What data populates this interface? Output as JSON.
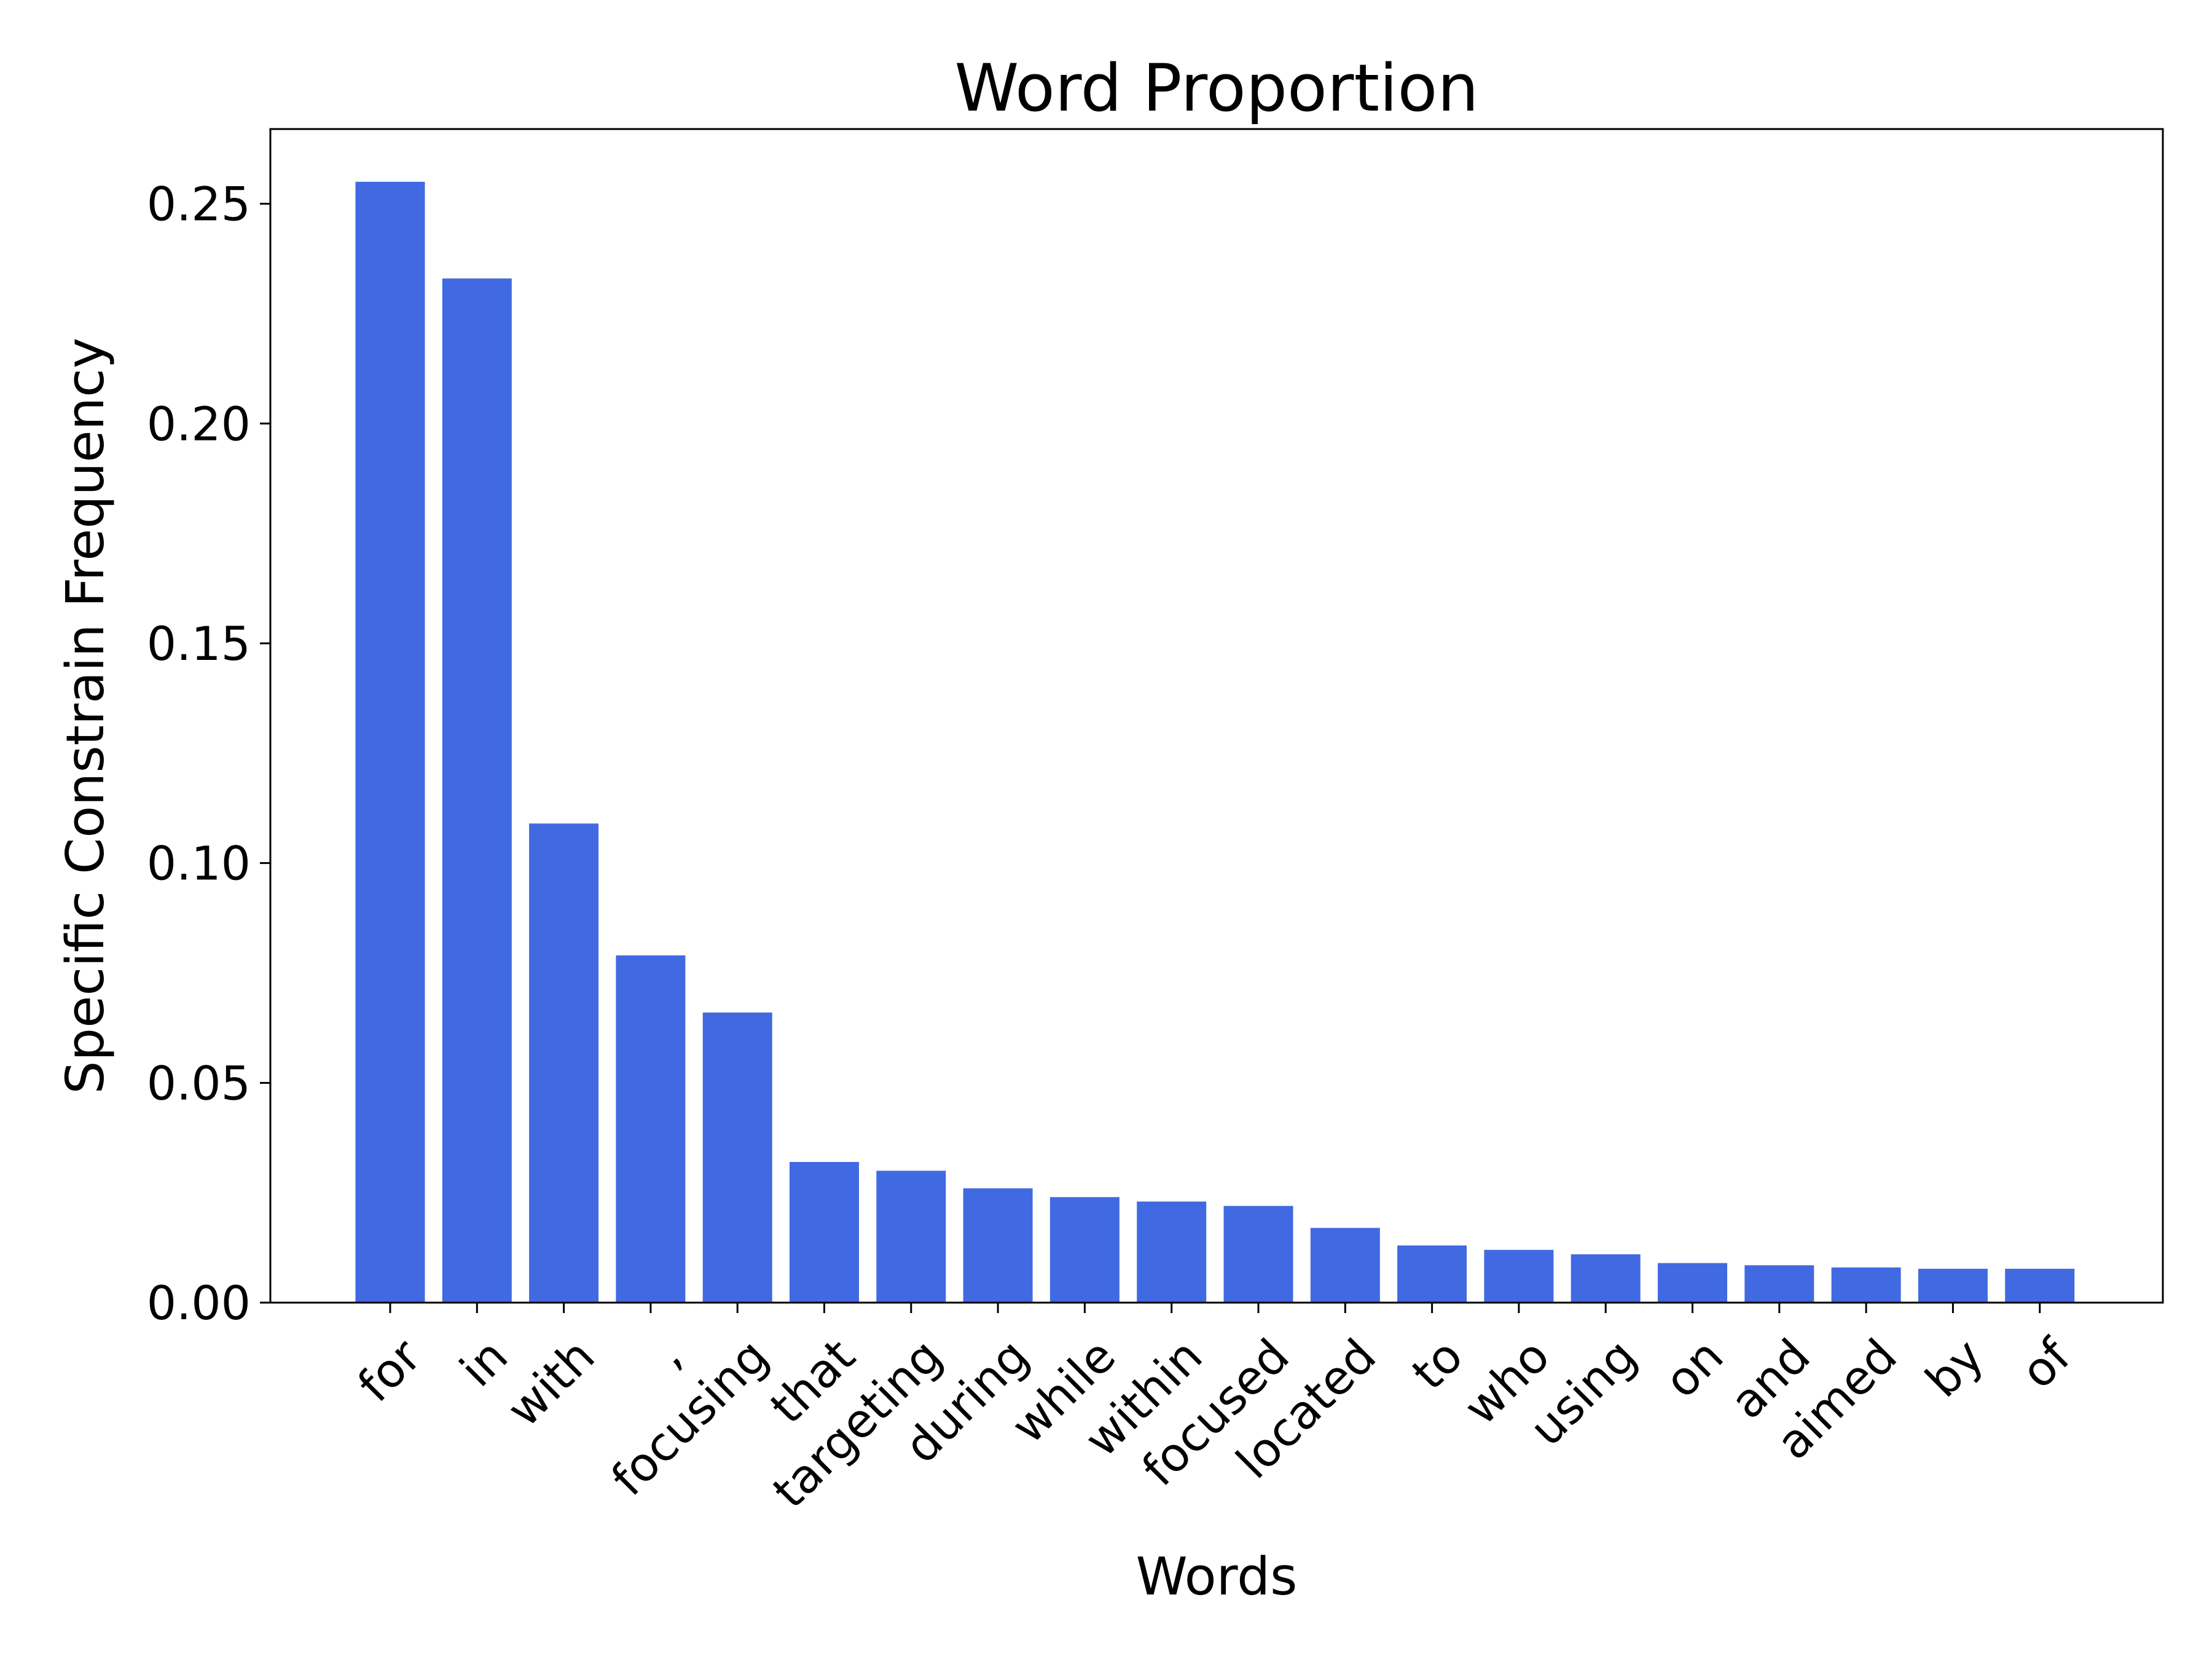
{
  "chart_data": {
    "type": "bar",
    "title": "Word Proportion",
    "xlabel": "Words",
    "ylabel": "Specific Constrain Frequency",
    "categories": [
      "for",
      "in",
      "with",
      ",",
      "focusing",
      "that",
      "targeting",
      "during",
      "while",
      "within",
      "focused",
      "located",
      "to",
      "who",
      "using",
      "on",
      "and",
      "aimed",
      "by",
      "of"
    ],
    "values": [
      0.255,
      0.233,
      0.109,
      0.079,
      0.066,
      0.032,
      0.03,
      0.026,
      0.024,
      0.023,
      0.022,
      0.017,
      0.013,
      0.012,
      0.011,
      0.009,
      0.0085,
      0.008,
      0.0077,
      0.0077
    ],
    "ylim": [
      0,
      0.267
    ],
    "yticks": [
      0.0,
      0.05,
      0.1,
      0.15,
      0.2,
      0.25
    ],
    "ytick_labels": [
      "0.00",
      "0.05",
      "0.10",
      "0.15",
      "0.20",
      "0.25"
    ],
    "bar_color": "#4169e1",
    "grid": false,
    "legend": "none"
  }
}
